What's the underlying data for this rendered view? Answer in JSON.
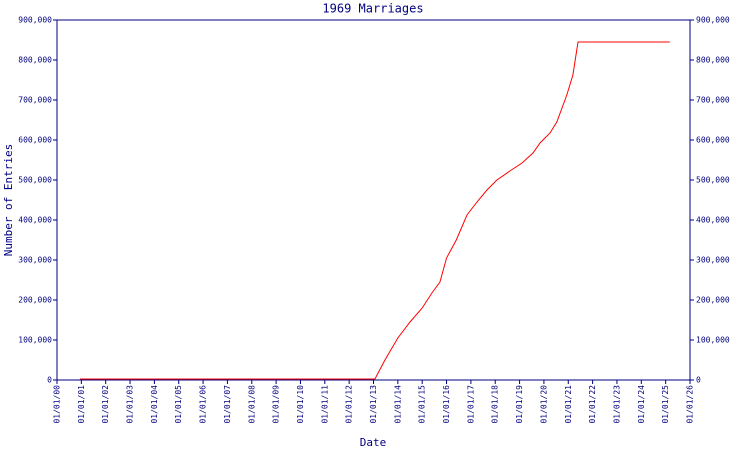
{
  "chart_data": {
    "type": "line",
    "title": "1969 Marriages",
    "x_label": "Date",
    "y_label": "Number of Entries",
    "x": [
      0.94,
      13.06,
      13.47,
      14.0,
      14.5,
      15.0,
      15.4,
      15.73,
      16.0,
      16.4,
      16.84,
      17.25,
      17.66,
      18.07,
      18.6,
      19.1,
      19.55,
      19.84,
      20.25,
      20.53,
      20.94,
      21.19,
      21.4,
      25.17
    ],
    "values": [
      2500,
      2500,
      50000,
      105000,
      145000,
      180000,
      217500,
      245000,
      305000,
      350000,
      412500,
      445000,
      475000,
      500000,
      522500,
      542500,
      567500,
      592500,
      617500,
      645000,
      712500,
      762500,
      845000,
      845000
    ],
    "color": "#ff0000",
    "xlim": [
      0,
      26
    ],
    "xticks": [
      {
        "value": 0,
        "label": "01/01/00"
      },
      {
        "value": 1,
        "label": "01/01/01"
      },
      {
        "value": 2,
        "label": "01/01/02"
      },
      {
        "value": 3,
        "label": "01/01/03"
      },
      {
        "value": 4,
        "label": "01/01/04"
      },
      {
        "value": 5,
        "label": "01/01/05"
      },
      {
        "value": 6,
        "label": "01/01/06"
      },
      {
        "value": 7,
        "label": "01/01/07"
      },
      {
        "value": 8,
        "label": "01/01/08"
      },
      {
        "value": 9,
        "label": "01/01/09"
      },
      {
        "value": 10,
        "label": "01/01/10"
      },
      {
        "value": 11,
        "label": "01/01/11"
      },
      {
        "value": 12,
        "label": "01/01/12"
      },
      {
        "value": 13,
        "label": "01/01/13"
      },
      {
        "value": 14,
        "label": "01/01/14"
      },
      {
        "value": 15,
        "label": "01/01/15"
      },
      {
        "value": 16,
        "label": "01/01/16"
      },
      {
        "value": 17,
        "label": "01/01/17"
      },
      {
        "value": 18,
        "label": "01/01/18"
      },
      {
        "value": 19,
        "label": "01/01/19"
      },
      {
        "value": 20,
        "label": "01/01/20"
      },
      {
        "value": 21,
        "label": "01/01/21"
      },
      {
        "value": 22,
        "label": "01/01/22"
      },
      {
        "value": 23,
        "label": "01/01/23"
      },
      {
        "value": 24,
        "label": "01/01/24"
      },
      {
        "value": 25,
        "label": "01/01/25"
      },
      {
        "value": 26,
        "label": "01/01/26"
      }
    ],
    "ylim": [
      0,
      900000
    ],
    "yticks": [
      0,
      {
        "value": 100000,
        "label": "100,000"
      },
      {
        "value": 200000,
        "label": "200,000"
      },
      {
        "value": 300000,
        "label": "300,000"
      },
      {
        "value": 400000,
        "label": "400,000"
      },
      {
        "value": 500000,
        "label": "500,000"
      },
      {
        "value": 600000,
        "label": "600,000"
      },
      {
        "value": 700000,
        "label": "700,000"
      },
      {
        "value": 800000,
        "label": "800,000"
      },
      {
        "value": 900000,
        "label": "900,000"
      }
    ]
  }
}
